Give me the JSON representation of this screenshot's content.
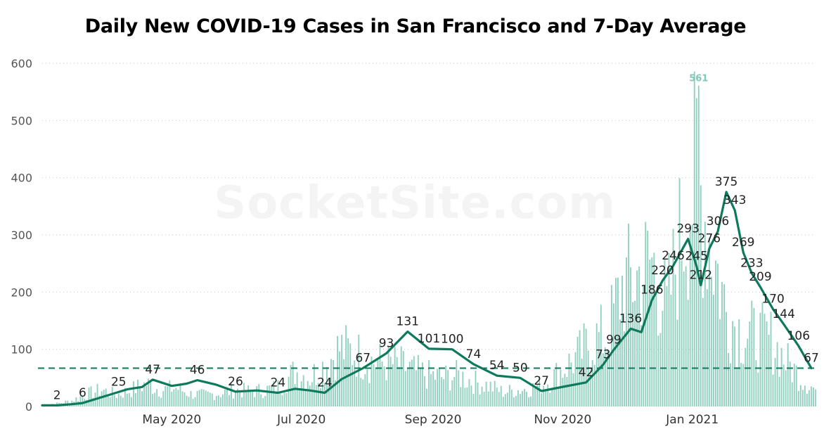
{
  "chart_data": {
    "type": "bar",
    "title": "Daily New COVID-19 Cases in San Francisco and 7-Day Average",
    "ylim": [
      0,
      600
    ],
    "yticks": [
      0,
      100,
      200,
      300,
      400,
      500,
      600
    ],
    "grid": true,
    "x_tick_labels": [
      "May 2020",
      "Jul 2020",
      "Sep 2020",
      "Nov 2020",
      "Jan 2021"
    ],
    "x_tick_dates": [
      "2020-05-01",
      "2020-07-01",
      "2020-09-01",
      "2020-11-01",
      "2021-01-01"
    ],
    "x_range": [
      "2020-03-01",
      "2021-02-28"
    ],
    "reference_line": 67,
    "colors": {
      "bars": "#7fc8b5",
      "line": "#0d7a5c",
      "peak_label": "#7fc8b5",
      "reference": "#0d7a5c"
    },
    "series": [
      {
        "type": "bar",
        "values_by_date": [
          [
            "2020-03-01",
            5
          ],
          [
            "2020-03-08",
            7
          ],
          [
            "2020-03-15",
            14
          ],
          [
            "2020-03-22",
            30
          ],
          [
            "2020-03-29",
            40
          ],
          [
            "2020-04-05",
            28
          ],
          [
            "2020-04-12",
            40
          ],
          [
            "2020-04-19",
            55
          ],
          [
            "2020-04-26",
            40
          ],
          [
            "2020-05-03",
            45
          ],
          [
            "2020-05-10",
            30
          ],
          [
            "2020-05-17",
            28
          ],
          [
            "2020-05-24",
            32
          ],
          [
            "2020-05-31",
            40
          ],
          [
            "2020-06-07",
            36
          ],
          [
            "2020-06-14",
            40
          ],
          [
            "2020-06-21",
            48
          ],
          [
            "2020-06-28",
            85
          ],
          [
            "2020-07-05",
            70
          ],
          [
            "2020-07-12",
            100
          ],
          [
            "2020-07-19",
            140
          ],
          [
            "2020-07-26",
            130
          ],
          [
            "2020-08-02",
            110
          ],
          [
            "2020-08-09",
            105
          ],
          [
            "2020-08-16",
            100
          ],
          [
            "2020-08-23",
            85
          ],
          [
            "2020-08-30",
            75
          ],
          [
            "2020-09-06",
            70
          ],
          [
            "2020-09-13",
            75
          ],
          [
            "2020-09-20",
            60
          ],
          [
            "2020-09-27",
            50
          ],
          [
            "2020-10-04",
            35
          ],
          [
            "2020-10-11",
            40
          ],
          [
            "2020-10-18",
            45
          ],
          [
            "2020-10-25",
            60
          ],
          [
            "2020-11-01",
            90
          ],
          [
            "2020-11-08",
            120
          ],
          [
            "2020-11-15",
            160
          ],
          [
            "2020-11-22",
            170
          ],
          [
            "2020-11-29",
            290
          ],
          [
            "2020-12-06",
            310
          ],
          [
            "2020-12-13",
            350
          ],
          [
            "2020-12-20",
            230
          ],
          [
            "2020-12-27",
            420
          ],
          [
            "2021-01-03",
            561
          ],
          [
            "2021-01-10",
            390
          ],
          [
            "2021-01-17",
            230
          ],
          [
            "2021-01-24",
            180
          ],
          [
            "2021-01-31",
            170
          ],
          [
            "2021-02-07",
            160
          ],
          [
            "2021-02-14",
            110
          ],
          [
            "2021-02-21",
            70
          ],
          [
            "2021-02-28",
            40
          ]
        ],
        "peak": {
          "date": "2021-01-04",
          "value": 561
        }
      },
      {
        "type": "line",
        "points": [
          [
            "2020-03-01",
            2
          ],
          [
            "2020-03-08",
            2
          ],
          [
            "2020-03-15",
            4
          ],
          [
            "2020-03-20",
            6
          ],
          [
            "2020-03-27",
            14
          ],
          [
            "2020-04-03",
            22
          ],
          [
            "2020-04-10",
            30
          ],
          [
            "2020-04-17",
            34
          ],
          [
            "2020-04-22",
            47
          ],
          [
            "2020-05-01",
            36
          ],
          [
            "2020-05-08",
            40
          ],
          [
            "2020-05-13",
            46
          ],
          [
            "2020-05-22",
            38
          ],
          [
            "2020-05-31",
            26
          ],
          [
            "2020-06-10",
            28
          ],
          [
            "2020-06-20",
            24
          ],
          [
            "2020-06-28",
            31
          ],
          [
            "2020-07-05",
            28
          ],
          [
            "2020-07-12",
            24
          ],
          [
            "2020-07-20",
            48
          ],
          [
            "2020-07-30",
            67
          ],
          [
            "2020-08-10",
            93
          ],
          [
            "2020-08-20",
            131
          ],
          [
            "2020-08-30",
            101
          ],
          [
            "2020-09-10",
            100
          ],
          [
            "2020-09-20",
            74
          ],
          [
            "2020-10-01",
            54
          ],
          [
            "2020-10-12",
            50
          ],
          [
            "2020-10-22",
            27
          ],
          [
            "2020-11-02",
            35
          ],
          [
            "2020-11-12",
            42
          ],
          [
            "2020-11-20",
            73
          ],
          [
            "2020-11-25",
            99
          ],
          [
            "2020-12-03",
            136
          ],
          [
            "2020-12-08",
            130
          ],
          [
            "2020-12-13",
            186
          ],
          [
            "2020-12-18",
            220
          ],
          [
            "2020-12-23",
            246
          ],
          [
            "2020-12-30",
            293
          ],
          [
            "2021-01-03",
            245
          ],
          [
            "2021-01-05",
            212
          ],
          [
            "2021-01-09",
            276
          ],
          [
            "2021-01-13",
            306
          ],
          [
            "2021-01-17",
            375
          ],
          [
            "2021-01-21",
            343
          ],
          [
            "2021-01-25",
            269
          ],
          [
            "2021-01-29",
            233
          ],
          [
            "2021-02-02",
            209
          ],
          [
            "2021-02-08",
            170
          ],
          [
            "2021-02-13",
            144
          ],
          [
            "2021-02-20",
            106
          ],
          [
            "2021-02-26",
            67
          ]
        ]
      }
    ],
    "data_labels": [
      [
        "2020-03-08",
        2,
        "2"
      ],
      [
        "2020-03-20",
        6,
        "6"
      ],
      [
        "2020-04-06",
        25,
        "25"
      ],
      [
        "2020-04-22",
        47,
        "47"
      ],
      [
        "2020-05-13",
        46,
        "46"
      ],
      [
        "2020-05-31",
        26,
        "26"
      ],
      [
        "2020-06-20",
        24,
        "24"
      ],
      [
        "2020-07-12",
        24,
        "24"
      ],
      [
        "2020-07-30",
        67,
        "67"
      ],
      [
        "2020-08-10",
        93,
        "93"
      ],
      [
        "2020-08-20",
        131,
        "131"
      ],
      [
        "2020-08-30",
        101,
        "101"
      ],
      [
        "2020-09-10",
        100,
        "100"
      ],
      [
        "2020-09-20",
        74,
        "74"
      ],
      [
        "2020-10-01",
        54,
        "54"
      ],
      [
        "2020-10-12",
        50,
        "50"
      ],
      [
        "2020-10-22",
        27,
        "27"
      ],
      [
        "2020-11-12",
        42,
        "42"
      ],
      [
        "2020-11-20",
        73,
        "73"
      ],
      [
        "2020-11-25",
        99,
        "99"
      ],
      [
        "2020-12-03",
        136,
        "136"
      ],
      [
        "2020-12-13",
        186,
        "186"
      ],
      [
        "2020-12-18",
        220,
        "220"
      ],
      [
        "2020-12-23",
        246,
        "246"
      ],
      [
        "2020-12-30",
        293,
        "293"
      ],
      [
        "2021-01-03",
        245,
        "245"
      ],
      [
        "2021-01-05",
        212,
        "212"
      ],
      [
        "2021-01-09",
        276,
        "276"
      ],
      [
        "2021-01-13",
        306,
        "306"
      ],
      [
        "2021-01-17",
        375,
        "375"
      ],
      [
        "2021-01-21",
        343,
        "343"
      ],
      [
        "2021-01-25",
        269,
        "269"
      ],
      [
        "2021-01-29",
        233,
        "233"
      ],
      [
        "2021-02-02",
        209,
        "209"
      ],
      [
        "2021-02-08",
        170,
        "170"
      ],
      [
        "2021-02-13",
        144,
        "144"
      ],
      [
        "2021-02-20",
        106,
        "106"
      ],
      [
        "2021-02-26",
        67,
        "67"
      ]
    ],
    "peak_label": "561",
    "watermark": "SocketSite.com"
  }
}
